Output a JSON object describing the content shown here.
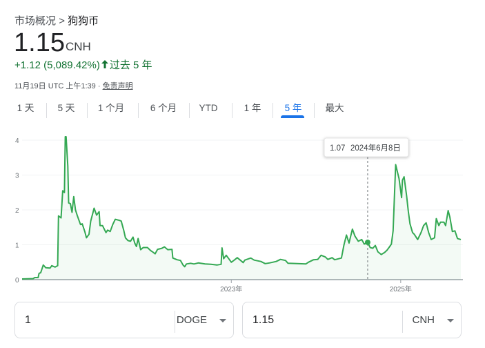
{
  "breadcrumb": {
    "parent": "市场概况",
    "separator": ">",
    "current": "狗狗币"
  },
  "quote": {
    "price": "1.15",
    "currency": "CNH",
    "change": "+1.12 (5,089.42%)",
    "change_arrow_icon": "arrow-up-icon",
    "period": "过去 5 年",
    "timestamp": "11月19日 UTC 上午1:39 ·",
    "disclaimer": "免责声明"
  },
  "tabs": [
    {
      "label": "1 天"
    },
    {
      "label": "5 天"
    },
    {
      "label": "1 个月"
    },
    {
      "label": "6 个月"
    },
    {
      "label": "YTD"
    },
    {
      "label": "1 年"
    },
    {
      "label": "5 年",
      "active": true
    },
    {
      "label": "最大"
    }
  ],
  "colors": {
    "line": "#34a853",
    "accent": "#1a73e8",
    "positive": "#137333"
  },
  "tooltip": {
    "value": "1.07",
    "date": "2024年6月8日"
  },
  "converter": {
    "from": {
      "value": "1",
      "unit": "DOGE"
    },
    "to": {
      "value": "1.15",
      "unit": "CNH"
    }
  },
  "chart_data": {
    "type": "line",
    "ylim": [
      0,
      4
    ],
    "yticks": [
      "0",
      "1",
      "2",
      "3",
      "4"
    ],
    "xlim": [
      2020.53,
      2025.71
    ],
    "xticks": [
      {
        "x": 2023,
        "label": "2023年"
      },
      {
        "x": 2025,
        "label": "2025年"
      }
    ],
    "grid": true,
    "highlight": {
      "x": 2024.61,
      "y": 1.07
    },
    "series": [
      {
        "x": [
          2020.53,
          2020.66,
          2020.68,
          2020.72,
          2020.73,
          2020.75,
          2020.78,
          2020.81,
          2020.86,
          2020.88,
          2020.92,
          2020.95,
          2020.96,
          2020.99,
          2021.01,
          2021.03,
          2021.04,
          2021.05,
          2021.07,
          2021.08,
          2021.1,
          2021.12,
          2021.14,
          2021.16,
          2021.18,
          2021.22,
          2021.24,
          2021.27,
          2021.29,
          2021.32,
          2021.34,
          2021.38,
          2021.41,
          2021.44,
          2021.45,
          2021.48,
          2021.52,
          2021.54,
          2021.57,
          2021.6,
          2021.63,
          2021.68,
          2021.7,
          2021.73,
          2021.75,
          2021.78,
          2021.81,
          2021.84,
          2021.86,
          2021.88,
          2021.9,
          2021.93,
          2021.96,
          2022.01,
          2022.05,
          2022.08,
          2022.1,
          2022.13,
          2022.18,
          2022.21,
          2022.25,
          2022.3,
          2022.31,
          2022.36,
          2022.4,
          2022.43,
          2022.45,
          2022.47,
          2022.52,
          2022.56,
          2022.61,
          2022.69,
          2022.76,
          2022.83,
          2022.88,
          2022.89,
          2022.91,
          2022.94,
          2022.97,
          2023.0,
          2023.04,
          2023.07,
          2023.11,
          2023.14,
          2023.16,
          2023.23,
          2023.27,
          2023.35,
          2023.4,
          2023.45,
          2023.53,
          2023.58,
          2023.64,
          2023.67,
          2023.78,
          2023.88,
          2023.91,
          2023.97,
          2024.02,
          2024.06,
          2024.11,
          2024.14,
          2024.19,
          2024.22,
          2024.3,
          2024.33,
          2024.36,
          2024.39,
          2024.43,
          2024.46,
          2024.5,
          2024.54,
          2024.57,
          2024.61,
          2024.64,
          2024.67,
          2024.7,
          2024.73,
          2024.77,
          2024.81,
          2024.84,
          2024.87,
          2024.89,
          2024.91,
          2024.94,
          2024.96,
          2024.98,
          2025.01,
          2025.02,
          2025.04,
          2025.07,
          2025.09,
          2025.11,
          2025.14,
          2025.16,
          2025.2,
          2025.24,
          2025.27,
          2025.3,
          2025.33,
          2025.36,
          2025.4,
          2025.42,
          2025.45,
          2025.47,
          2025.51,
          2025.53,
          2025.56,
          2025.58,
          2025.61,
          2025.64,
          2025.67,
          2025.71
        ],
        "y": [
          0.02,
          0.03,
          0.06,
          0.06,
          0.18,
          0.2,
          0.42,
          0.34,
          0.33,
          0.4,
          0.36,
          0.4,
          1.83,
          1.77,
          2.55,
          2.5,
          4.1,
          4.1,
          3.26,
          2.2,
          2.18,
          1.93,
          2.38,
          2.0,
          1.85,
          1.58,
          1.6,
          1.38,
          1.2,
          1.3,
          1.68,
          2.05,
          1.85,
          1.95,
          1.55,
          1.55,
          1.35,
          1.42,
          1.38,
          1.58,
          1.73,
          1.7,
          1.68,
          1.42,
          1.2,
          1.12,
          1.1,
          1.22,
          1.05,
          0.95,
          1.18,
          0.86,
          0.92,
          0.92,
          0.83,
          0.78,
          0.74,
          0.87,
          0.9,
          0.94,
          0.86,
          0.87,
          0.62,
          0.57,
          0.55,
          0.42,
          0.37,
          0.45,
          0.47,
          0.45,
          0.48,
          0.45,
          0.44,
          0.42,
          0.44,
          0.91,
          0.6,
          0.7,
          0.6,
          0.5,
          0.57,
          0.63,
          0.55,
          0.49,
          0.56,
          0.62,
          0.56,
          0.52,
          0.46,
          0.48,
          0.52,
          0.58,
          0.55,
          0.47,
          0.46,
          0.45,
          0.5,
          0.57,
          0.58,
          0.7,
          0.65,
          0.58,
          0.63,
          0.57,
          0.62,
          1.0,
          1.28,
          1.05,
          1.45,
          1.25,
          1.1,
          1.15,
          1.02,
          1.07,
          0.92,
          0.9,
          0.98,
          0.8,
          0.72,
          0.78,
          0.85,
          0.95,
          1.02,
          1.4,
          3.3,
          3.1,
          2.9,
          2.35,
          2.85,
          2.95,
          2.4,
          1.95,
          1.6,
          1.35,
          1.3,
          1.15,
          1.35,
          1.55,
          1.63,
          1.35,
          1.15,
          1.2,
          1.75,
          1.55,
          1.65,
          1.65,
          1.55,
          1.98,
          1.8,
          1.38,
          1.4,
          1.18,
          1.15
        ]
      }
    ]
  }
}
